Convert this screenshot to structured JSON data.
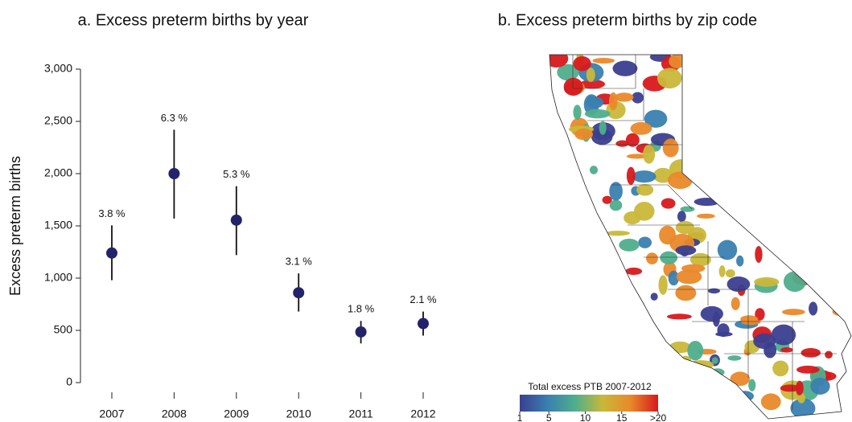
{
  "chart_data": [
    {
      "type": "errorbar",
      "title": "a. Excess preterm births by year",
      "ylabel": "Excess preterm births",
      "categories": [
        "2007",
        "2008",
        "2009",
        "2010",
        "2011",
        "2012"
      ],
      "series": [
        {
          "color": "#23236b",
          "values": [
            1240,
            2000,
            1555,
            860,
            485,
            565
          ],
          "lower": [
            980,
            1570,
            1220,
            680,
            375,
            450
          ],
          "upper": [
            1505,
            2420,
            1880,
            1045,
            590,
            680
          ]
        }
      ],
      "annotations": [
        "3.8 %",
        "6.3 %",
        "5.3 %",
        "3.1 %",
        "1.8 %",
        "2.1 %"
      ],
      "ylim": [
        0,
        3000
      ],
      "yticks": [
        0,
        500,
        {
          "value": 1000,
          "label": "1,000"
        },
        {
          "value": 1500,
          "label": "1,500"
        },
        {
          "value": 2000,
          "label": "2,000"
        },
        {
          "value": 2500,
          "label": "2,500"
        },
        {
          "value": 3000,
          "label": "3,000"
        }
      ]
    },
    {
      "type": "map",
      "title": "b. Excess preterm births by zip code",
      "colorbar_label": "Total excess PTB 2007-2012",
      "clim": [
        1,
        20
      ],
      "colorbar_ticks": [
        1,
        5,
        10,
        15,
        {
          "value": 20,
          "label": ">20"
        }
      ],
      "colors": [
        "#3b3f8f",
        "#3a7fb0",
        "#4fae8c",
        "#c9b83a",
        "#e9892a",
        "#d7191c"
      ]
    }
  ]
}
